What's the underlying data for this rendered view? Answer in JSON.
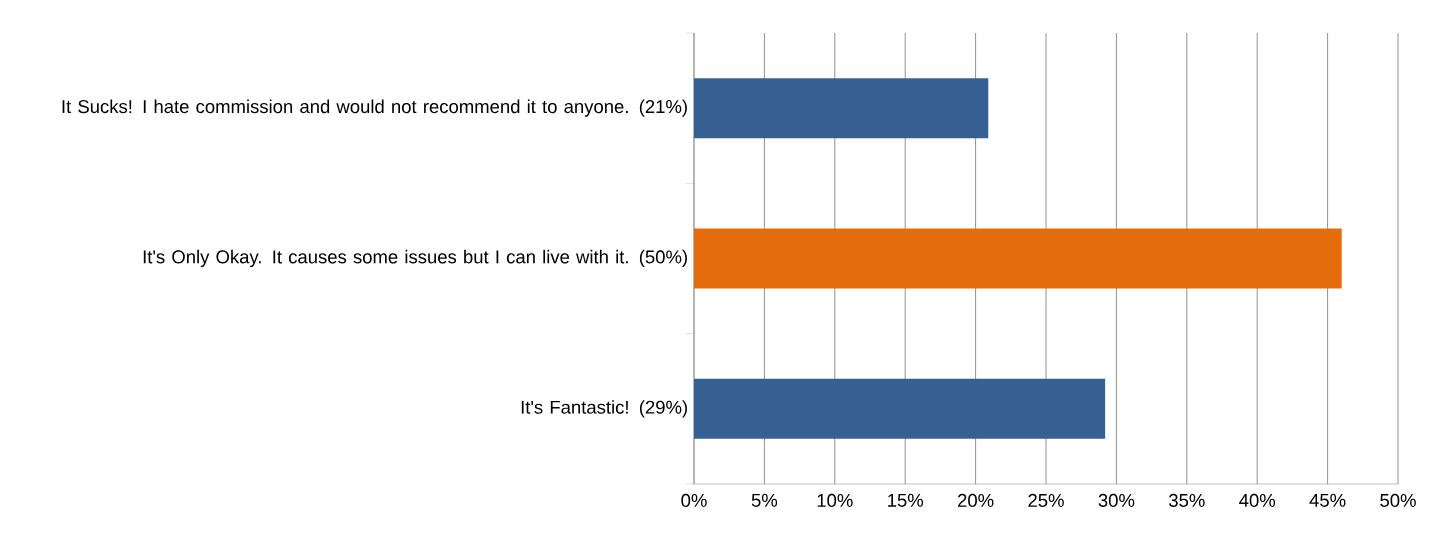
{
  "chart_data": {
    "type": "bar",
    "orientation": "horizontal",
    "categories": [
      "It Sucks! I hate commission and would not recommend it to anyone. (21%)",
      "It's Only Okay. It causes some issues but I can live with it. (50%)",
      "It's Fantastic! (29%)"
    ],
    "values": [
      20.9,
      46,
      29.2
    ],
    "colors": [
      "#366092",
      "#e46c0a",
      "#366092"
    ],
    "xlim": [
      0,
      50
    ],
    "xticks": [
      {
        "value": 0,
        "label": "0%"
      },
      {
        "value": 5,
        "label": "5%"
      },
      {
        "value": 10,
        "label": "10%"
      },
      {
        "value": 15,
        "label": "15%"
      },
      {
        "value": 20,
        "label": "20%"
      },
      {
        "value": 25,
        "label": "25%"
      },
      {
        "value": 30,
        "label": "30%"
      },
      {
        "value": 35,
        "label": "35%"
      },
      {
        "value": 40,
        "label": "40%"
      },
      {
        "value": 45,
        "label": "45%"
      },
      {
        "value": 50,
        "label": "50%"
      }
    ],
    "grid": "x"
  }
}
